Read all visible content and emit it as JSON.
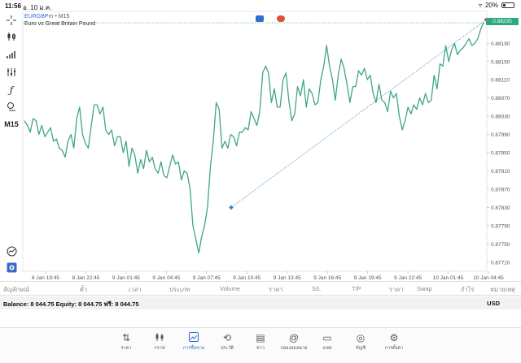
{
  "status": {
    "time": "11:56",
    "date": "อ. 10 ม.ค.",
    "battery": "20%"
  },
  "toolbar": {
    "crosshair_icon": "crosshair-icon",
    "timeframe": "M15"
  },
  "chart_header": {
    "symbol": "EURGBPm",
    "separator": " • ",
    "timeframe": "M15",
    "description": "Euro vs Great Britain Pound"
  },
  "current_price": "0.88235",
  "chart_data": {
    "type": "line",
    "ylim": [
      0.8769,
      0.8826
    ],
    "y_ticks": [
      "0.88190",
      "0.88150",
      "0.88110",
      "0.88070",
      "0.88030",
      "0.87990",
      "0.87950",
      "0.87910",
      "0.87870",
      "0.87830",
      "0.87790",
      "0.87750",
      "0.87710"
    ],
    "x_ticks": [
      "6 Jan 19:45",
      "8 Jan 22:45",
      "9 Jan 01:45",
      "9 Jan 04:45",
      "9 Jan 07:45",
      "9 Jan 10:45",
      "9 Jan 13:45",
      "9 Jan 16:45",
      "9 Jan 19:45",
      "9 Jan 22:45",
      "10 Jan 01:45",
      "10 Jan 04:45"
    ],
    "series": [
      {
        "values": [
          0.8802,
          0.8801,
          0.87995,
          0.88025,
          0.8802,
          0.8799,
          0.8801,
          0.87985,
          0.87995,
          0.88005,
          0.87975,
          0.8798,
          0.8796,
          0.87955,
          0.8794,
          0.87975,
          0.8799,
          0.8796,
          0.88025,
          0.8805,
          0.8799,
          0.8797,
          0.8796,
          0.8801,
          0.88055,
          0.88055,
          0.88035,
          0.8805,
          0.88,
          0.8799,
          0.88,
          0.87965,
          0.87985,
          0.87985,
          0.8795,
          0.87975,
          0.8792,
          0.8796,
          0.87945,
          0.87905,
          0.87935,
          0.87915,
          0.87955,
          0.8793,
          0.8794,
          0.87915,
          0.87905,
          0.8793,
          0.879,
          0.87895,
          0.8792,
          0.87945,
          0.87925,
          0.8793,
          0.8789,
          0.8791,
          0.87905,
          0.8787,
          0.8779,
          0.8776,
          0.8773,
          0.87765,
          0.8779,
          0.8783,
          0.8792,
          0.87975,
          0.8806,
          0.88045,
          0.8796,
          0.87975,
          0.8796,
          0.8799,
          0.87985,
          0.87965,
          0.87995,
          0.87995,
          0.88005,
          0.88,
          0.8804,
          0.88025,
          0.8801,
          0.8804,
          0.88125,
          0.8814,
          0.88125,
          0.8806,
          0.8809,
          0.8805,
          0.8805,
          0.8811,
          0.88125,
          0.88065,
          0.8802,
          0.88035,
          0.88095,
          0.88075,
          0.8811,
          0.8805,
          0.8809,
          0.8808,
          0.88055,
          0.8806,
          0.8811,
          0.8814,
          0.88185,
          0.8814,
          0.8811,
          0.88065,
          0.8812,
          0.88155,
          0.88135,
          0.881,
          0.8806,
          0.88095,
          0.88095,
          0.8813,
          0.8812,
          0.88135,
          0.8811,
          0.8812,
          0.8808,
          0.8806,
          0.881,
          0.88065,
          0.8806,
          0.8804,
          0.88085,
          0.8807,
          0.8808,
          0.8803,
          0.88,
          0.8802,
          0.8805,
          0.88035,
          0.88055,
          0.88045,
          0.8807,
          0.88055,
          0.8808,
          0.8806,
          0.88065,
          0.8812,
          0.8809,
          0.88145,
          0.8814,
          0.88185,
          0.8815,
          0.88175,
          0.8819,
          0.88165,
          0.88175,
          0.8818,
          0.8819,
          0.882,
          0.88185,
          0.8819,
          0.882,
          0.8822,
          0.88235
        ]
      }
    ],
    "trade_line": {
      "from": 0.8783,
      "to": 0.8824
    }
  },
  "table_headers": [
    "สัญลักษณ์",
    "ตั๋ว",
    "เวลา",
    "ประเภท",
    "Volume",
    "ราคา",
    "S/L",
    "T/P",
    "ราคา",
    "Swap",
    "กำไร",
    "หมายเหตุ"
  ],
  "balance": {
    "text": "Balance: 8 044.75 Equity: 8 044.75 ฟรี: 8 044.75",
    "currency": "USD"
  },
  "tabs": [
    {
      "label": "ราคา",
      "icon": "quotes-icon"
    },
    {
      "label": "กราฟ",
      "icon": "chart-icon"
    },
    {
      "label": "การซื้อขาย",
      "icon": "trade-icon",
      "active": true
    },
    {
      "label": "ประวัติ",
      "icon": "history-icon"
    },
    {
      "label": "ข่าว",
      "icon": "news-icon"
    },
    {
      "label": "กล่องจดหมาย",
      "icon": "mailbox-icon"
    },
    {
      "label": "แชท",
      "icon": "chat-icon"
    },
    {
      "label": "บัญชี",
      "icon": "account-icon"
    },
    {
      "label": "การตั้งค่า",
      "icon": "settings-icon"
    }
  ],
  "colors": {
    "line": "#3fa784",
    "accent": "#2f6fce",
    "grid": "#e3e3e3",
    "trade_line": "#2f84c9"
  }
}
